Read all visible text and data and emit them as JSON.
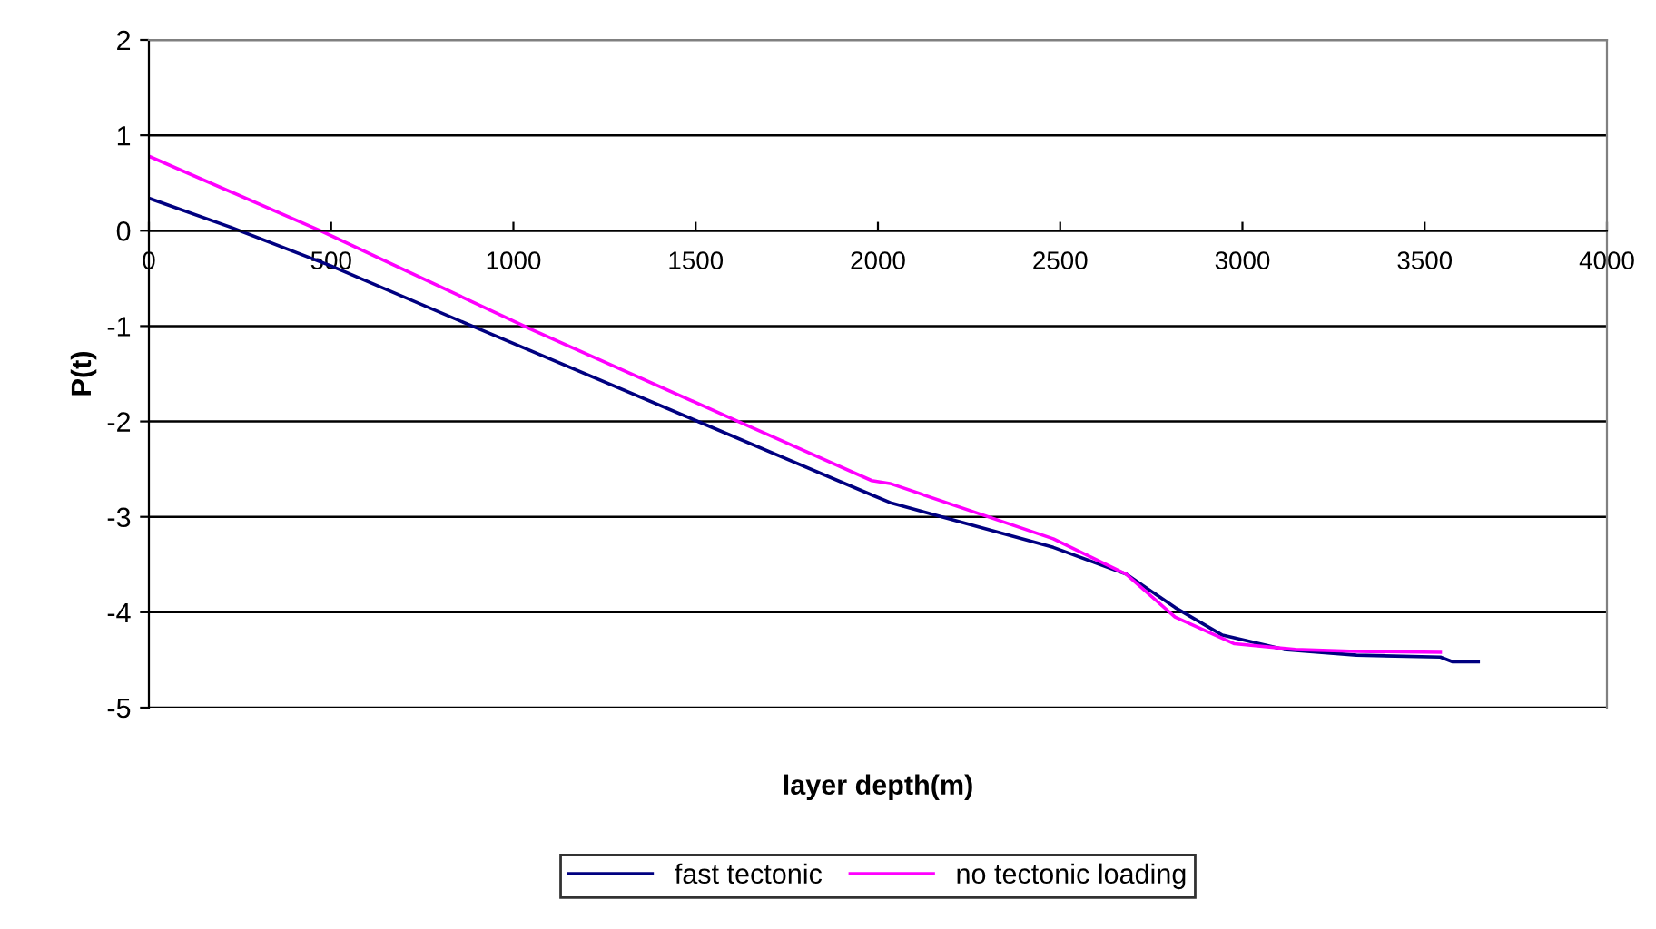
{
  "chart_data": {
    "type": "line",
    "xlabel": "layer depth(m)",
    "ylabel": "P(t)",
    "xlim": [
      0,
      4000
    ],
    "xticks": [
      0,
      500,
      1000,
      1500,
      2000,
      2500,
      3000,
      3500,
      4000
    ],
    "ylim": [
      -5,
      2
    ],
    "yticks": [
      -5,
      -4,
      -3,
      -2,
      -1,
      0,
      1,
      2
    ],
    "grid": "y",
    "legend": "bottom",
    "line_style": "solid",
    "marker": "none",
    "series": [
      {
        "name": "fast tectonic",
        "color": "#000080",
        "x": [
          0,
          222,
          500,
          887,
          1500,
          1983,
          2033,
          2481,
          2681,
          2815,
          2945,
          3114,
          3313,
          3543,
          3577,
          3647
        ],
        "values": [
          0.34,
          0.04,
          -0.37,
          -1.0,
          -1.99,
          -2.77,
          -2.85,
          -3.32,
          -3.6,
          -3.95,
          -4.24,
          -4.39,
          -4.45,
          -4.47,
          -4.52,
          -4.52
        ]
      },
      {
        "name": "no tectonic loading",
        "color": "#ff00ff",
        "x": [
          0,
          471,
          1052,
          1617,
          1983,
          2033,
          2481,
          2681,
          2815,
          2978,
          3145,
          3313,
          3543
        ],
        "values": [
          0.78,
          0.0,
          -1.04,
          -2.0,
          -2.62,
          -2.65,
          -3.23,
          -3.6,
          -4.05,
          -4.33,
          -4.39,
          -4.41,
          -4.42
        ]
      }
    ]
  }
}
